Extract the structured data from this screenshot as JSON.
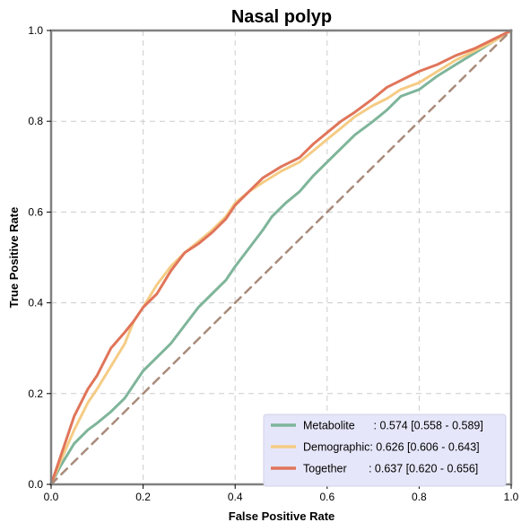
{
  "chart_data": {
    "type": "line",
    "title": "Nasal polyp",
    "xlabel": "False Positive Rate",
    "ylabel": "True Positive Rate",
    "xlim": [
      0,
      1
    ],
    "ylim": [
      0,
      1
    ],
    "xticks": [
      "0.0",
      "0.2",
      "0.4",
      "0.6",
      "0.8",
      "1.0"
    ],
    "yticks": [
      "0.0",
      "0.2",
      "0.4",
      "0.6",
      "0.8",
      "1.0"
    ],
    "grid": true,
    "legend_position": "lower-right",
    "series": [
      {
        "name": "Metabolite",
        "legend_label": "Metabolite      : 0.574 [0.558 - 0.589]",
        "color": "#7fb59a",
        "points": [
          [
            0,
            0
          ],
          [
            0.02,
            0.04
          ],
          [
            0.05,
            0.09
          ],
          [
            0.08,
            0.12
          ],
          [
            0.1,
            0.135
          ],
          [
            0.13,
            0.16
          ],
          [
            0.16,
            0.19
          ],
          [
            0.18,
            0.22
          ],
          [
            0.2,
            0.25
          ],
          [
            0.23,
            0.28
          ],
          [
            0.26,
            0.31
          ],
          [
            0.29,
            0.35
          ],
          [
            0.32,
            0.39
          ],
          [
            0.35,
            0.42
          ],
          [
            0.38,
            0.45
          ],
          [
            0.4,
            0.48
          ],
          [
            0.43,
            0.52
          ],
          [
            0.46,
            0.56
          ],
          [
            0.48,
            0.59
          ],
          [
            0.51,
            0.62
          ],
          [
            0.54,
            0.645
          ],
          [
            0.57,
            0.68
          ],
          [
            0.6,
            0.71
          ],
          [
            0.63,
            0.74
          ],
          [
            0.66,
            0.77
          ],
          [
            0.7,
            0.8
          ],
          [
            0.73,
            0.825
          ],
          [
            0.76,
            0.855
          ],
          [
            0.8,
            0.87
          ],
          [
            0.84,
            0.9
          ],
          [
            0.88,
            0.925
          ],
          [
            0.92,
            0.95
          ],
          [
            0.96,
            0.975
          ],
          [
            1.0,
            1.0
          ]
        ]
      },
      {
        "name": "Demographic",
        "legend_label": "Demographic: 0.626 [0.606 - 0.643]",
        "color": "#f5cc85",
        "points": [
          [
            0,
            0
          ],
          [
            0.02,
            0.05
          ],
          [
            0.05,
            0.12
          ],
          [
            0.08,
            0.18
          ],
          [
            0.1,
            0.21
          ],
          [
            0.13,
            0.26
          ],
          [
            0.16,
            0.31
          ],
          [
            0.18,
            0.36
          ],
          [
            0.2,
            0.39
          ],
          [
            0.23,
            0.44
          ],
          [
            0.26,
            0.48
          ],
          [
            0.29,
            0.51
          ],
          [
            0.32,
            0.535
          ],
          [
            0.35,
            0.56
          ],
          [
            0.38,
            0.59
          ],
          [
            0.4,
            0.62
          ],
          [
            0.43,
            0.645
          ],
          [
            0.46,
            0.665
          ],
          [
            0.5,
            0.69
          ],
          [
            0.54,
            0.71
          ],
          [
            0.57,
            0.735
          ],
          [
            0.6,
            0.76
          ],
          [
            0.63,
            0.785
          ],
          [
            0.66,
            0.81
          ],
          [
            0.7,
            0.835
          ],
          [
            0.73,
            0.85
          ],
          [
            0.76,
            0.87
          ],
          [
            0.8,
            0.885
          ],
          [
            0.84,
            0.91
          ],
          [
            0.88,
            0.935
          ],
          [
            0.92,
            0.955
          ],
          [
            0.96,
            0.975
          ],
          [
            1.0,
            1.0
          ]
        ]
      },
      {
        "name": "Together",
        "legend_label": "Together       : 0.637 [0.620 - 0.656]",
        "color": "#e0755a",
        "points": [
          [
            0,
            0
          ],
          [
            0.02,
            0.06
          ],
          [
            0.05,
            0.15
          ],
          [
            0.08,
            0.21
          ],
          [
            0.1,
            0.24
          ],
          [
            0.13,
            0.3
          ],
          [
            0.16,
            0.335
          ],
          [
            0.18,
            0.36
          ],
          [
            0.2,
            0.39
          ],
          [
            0.23,
            0.42
          ],
          [
            0.26,
            0.47
          ],
          [
            0.29,
            0.51
          ],
          [
            0.32,
            0.53
          ],
          [
            0.35,
            0.555
          ],
          [
            0.38,
            0.585
          ],
          [
            0.4,
            0.615
          ],
          [
            0.43,
            0.645
          ],
          [
            0.46,
            0.675
          ],
          [
            0.5,
            0.7
          ],
          [
            0.54,
            0.72
          ],
          [
            0.57,
            0.75
          ],
          [
            0.6,
            0.775
          ],
          [
            0.63,
            0.8
          ],
          [
            0.66,
            0.82
          ],
          [
            0.7,
            0.85
          ],
          [
            0.73,
            0.875
          ],
          [
            0.76,
            0.89
          ],
          [
            0.8,
            0.91
          ],
          [
            0.84,
            0.925
          ],
          [
            0.88,
            0.945
          ],
          [
            0.92,
            0.96
          ],
          [
            0.96,
            0.98
          ],
          [
            1.0,
            1.0
          ]
        ]
      },
      {
        "name": "Chance",
        "color": "#a98b7b",
        "dashed": true,
        "points": [
          [
            0,
            0
          ],
          [
            1,
            1
          ]
        ]
      }
    ]
  }
}
